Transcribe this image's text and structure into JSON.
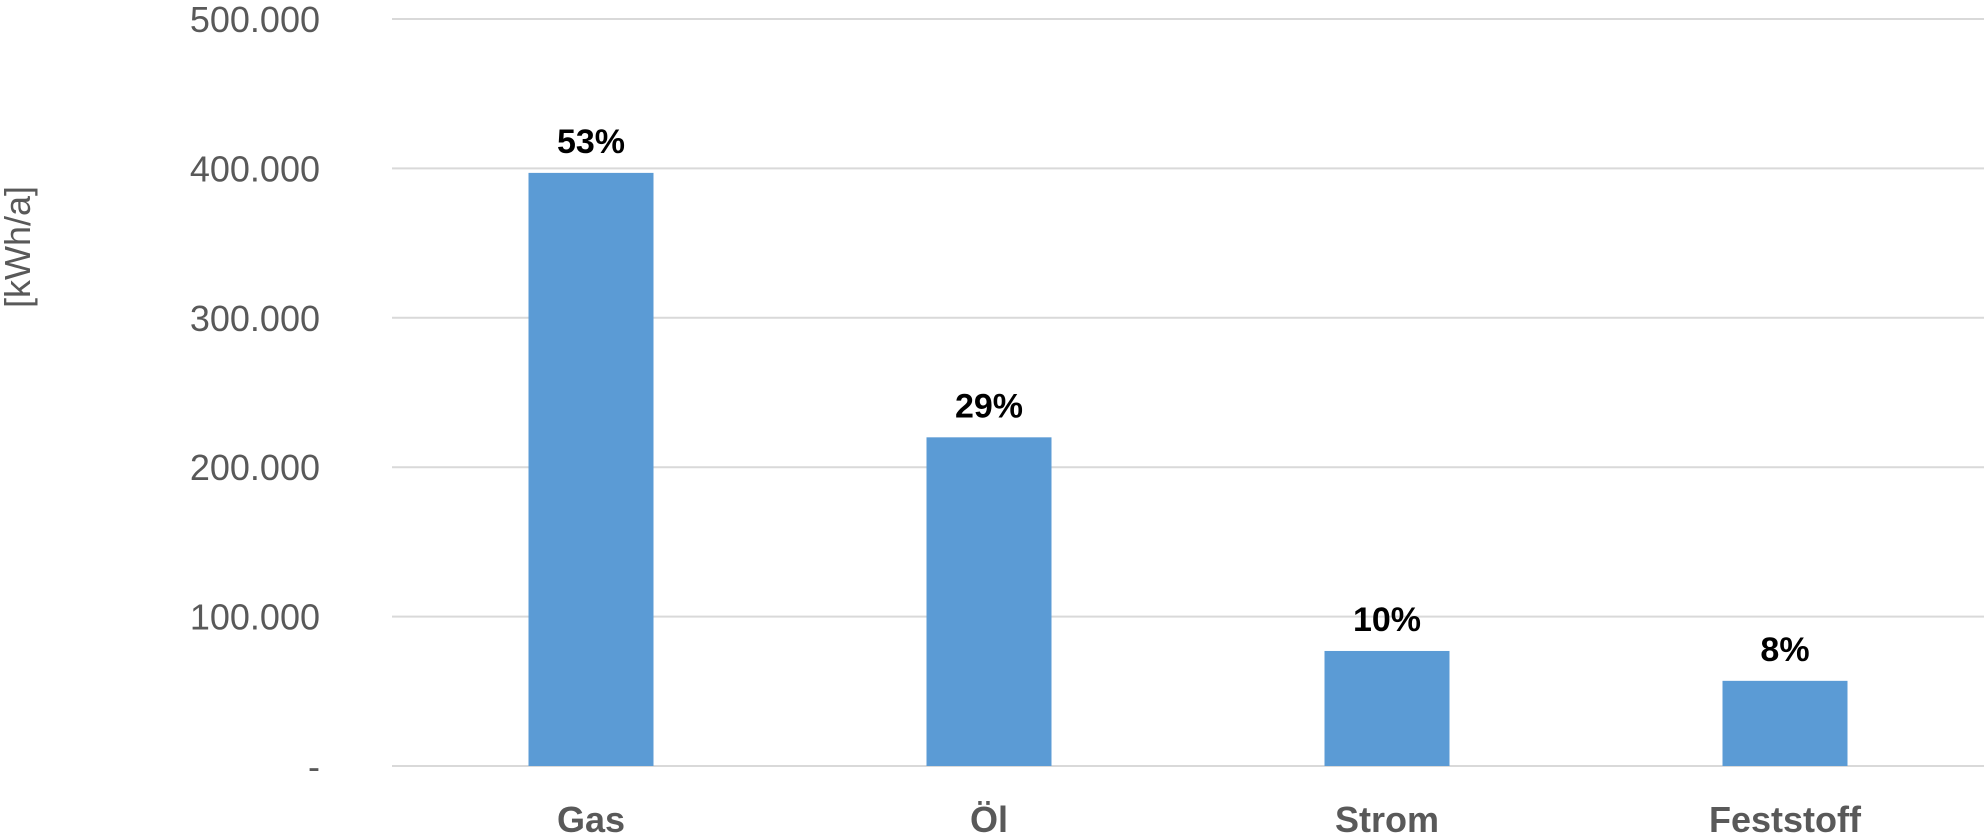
{
  "chart_data": {
    "type": "bar",
    "title": "",
    "xlabel": "",
    "ylabel": "[kWh/a]",
    "categories": [
      "Gas",
      "Öl",
      "Strom",
      "Feststoff"
    ],
    "values": [
      397000,
      220000,
      77000,
      57000
    ],
    "data_labels": [
      "53%",
      "29%",
      "10%",
      "8%"
    ],
    "ylim": [
      0,
      500000
    ],
    "yticks": [
      0,
      100000,
      200000,
      300000,
      400000,
      500000
    ],
    "ytick_labels": [
      "-",
      "100.000",
      "200.000",
      "300.000",
      "400.000",
      "500.000"
    ],
    "grid": true,
    "legend": "none",
    "colors": {
      "bar": "#5b9bd5",
      "grid": "#d9d9d9",
      "axis_text": "#595959",
      "data_label": "#000000"
    }
  }
}
